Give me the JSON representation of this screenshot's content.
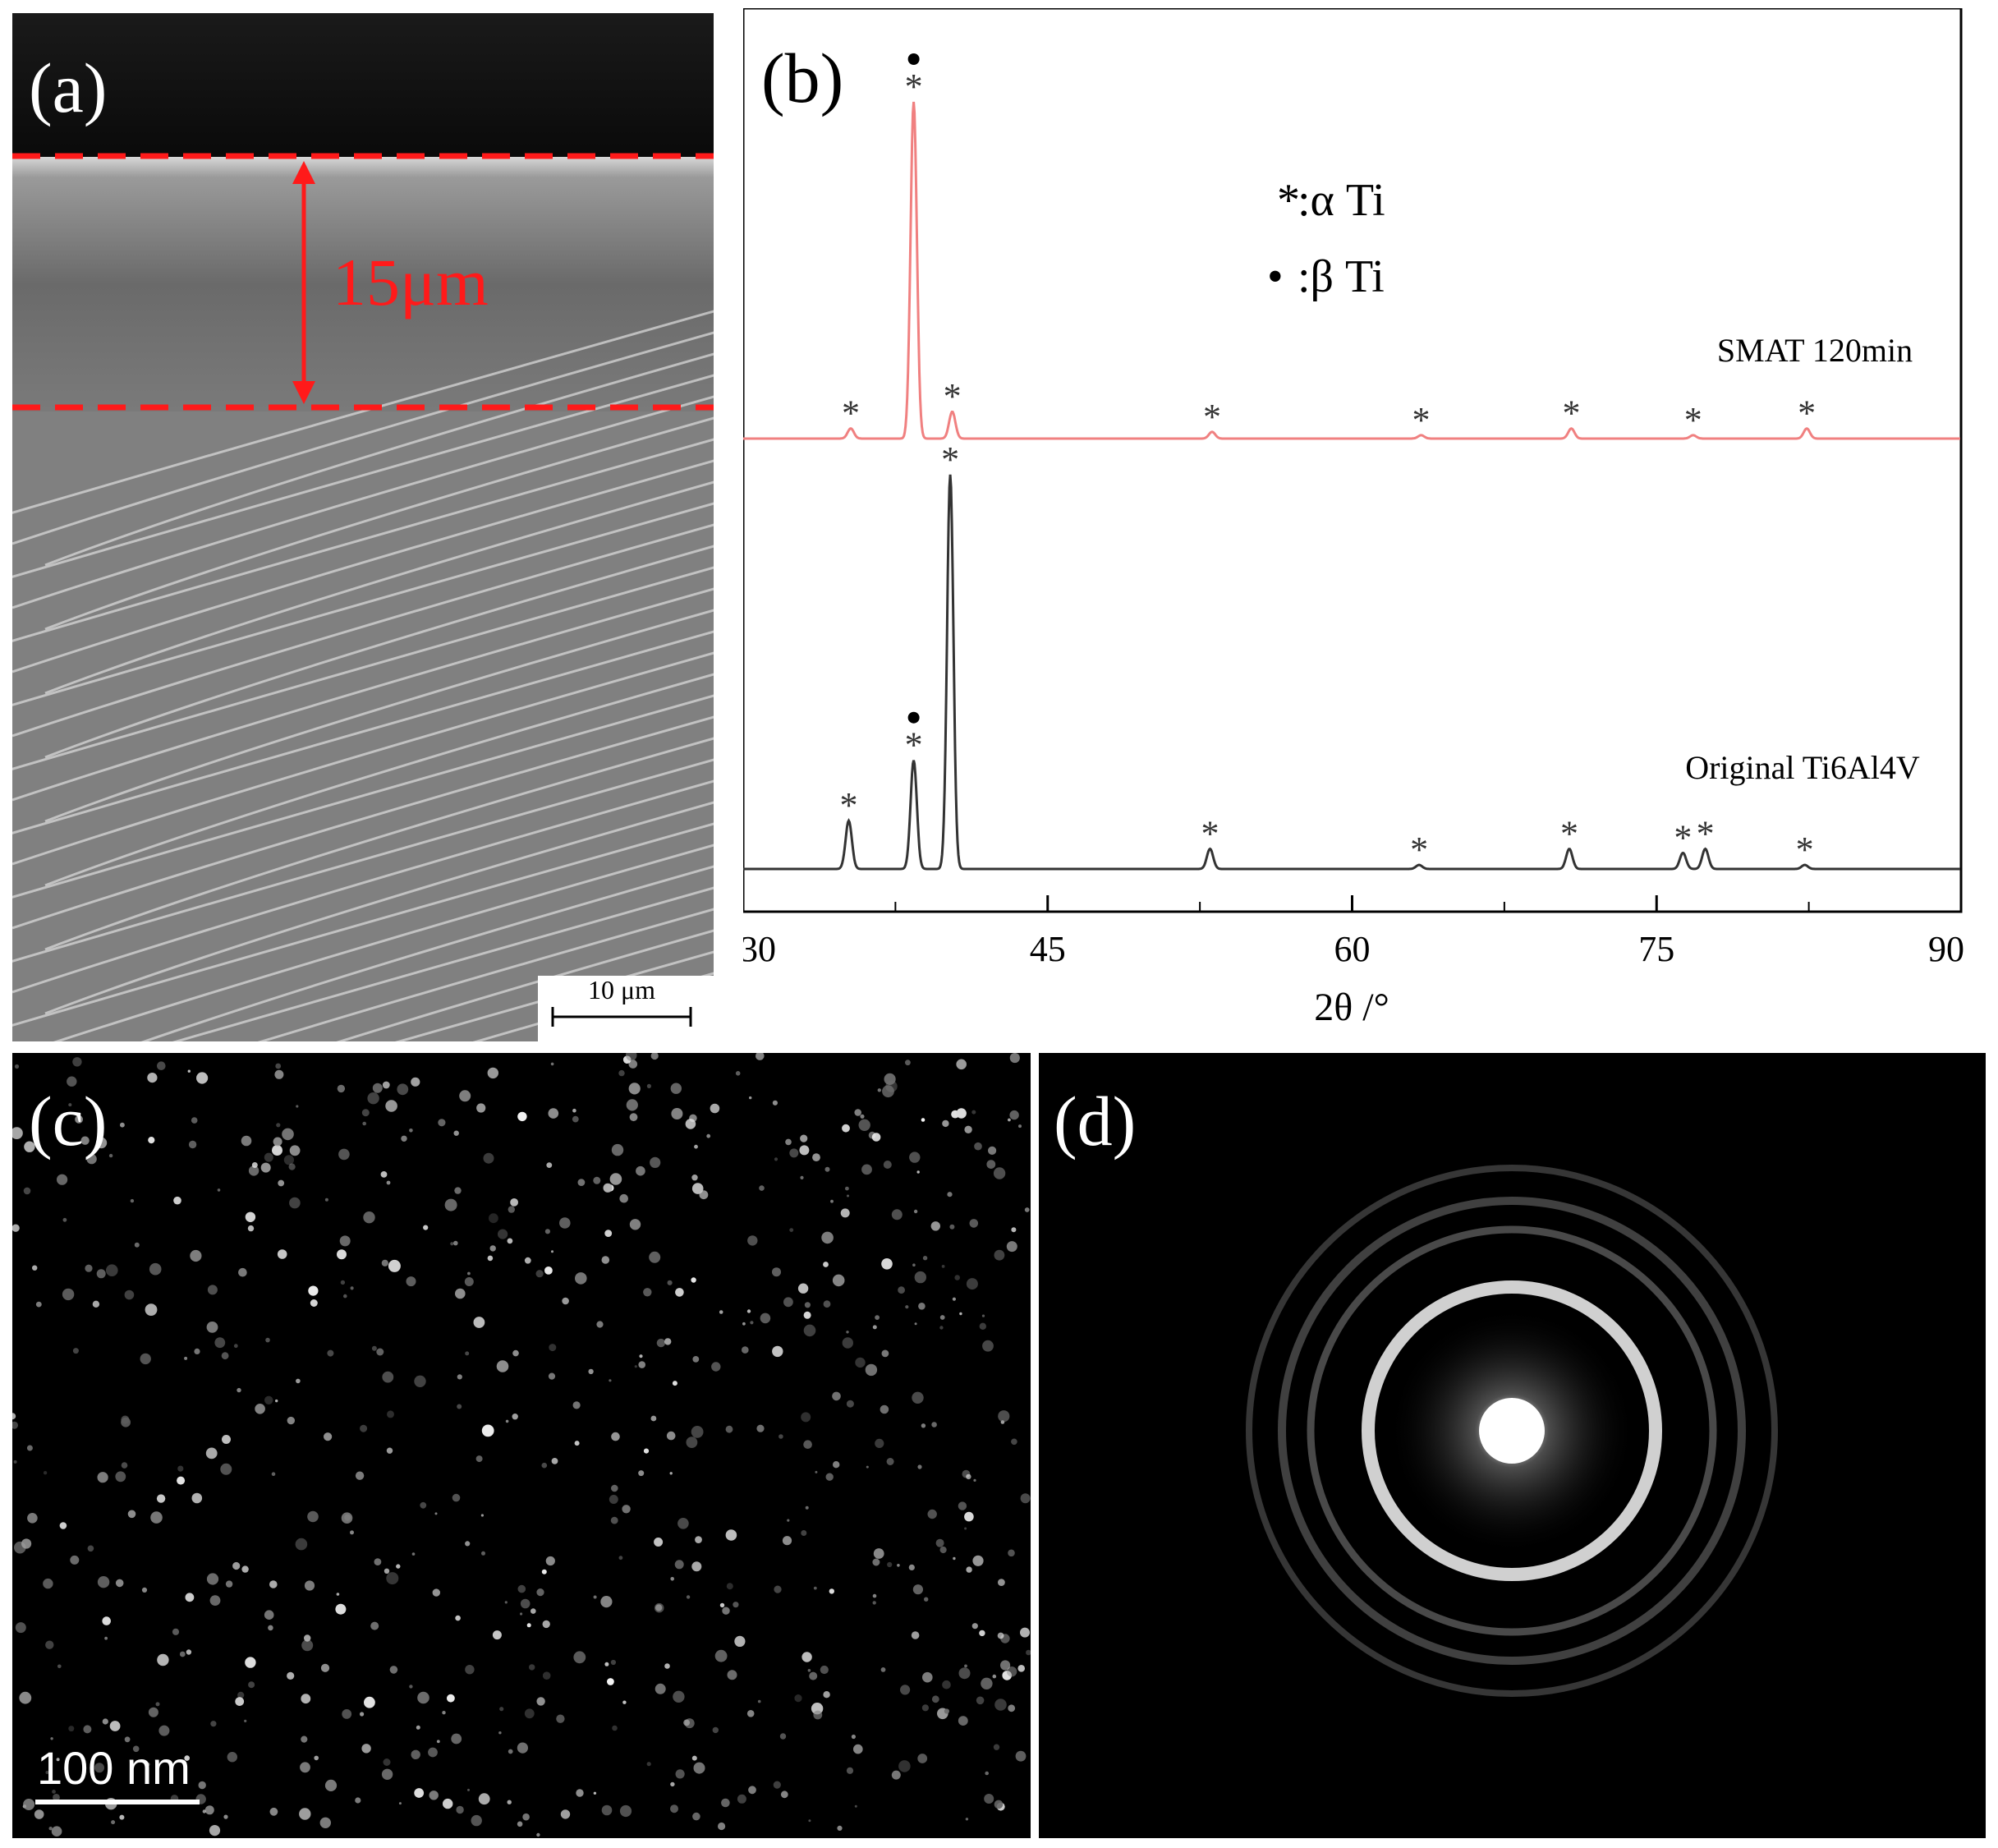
{
  "figure": {
    "panels": {
      "a": {
        "letter": "(a)",
        "thickness_label": "15μm",
        "scale_bar_label": "10 μm"
      },
      "b": {
        "letter": "(b)",
        "legend": [
          {
            "symbol": "*",
            "text": ":α Ti"
          },
          {
            "symbol": "•",
            "text": ":β Ti"
          }
        ]
      },
      "c": {
        "letter": "(c)",
        "scale_bar_label": "100 nm"
      },
      "d": {
        "letter": "(d)"
      }
    },
    "colors": {
      "thickness_marker": "#ff1a1a",
      "smat_curve": "#f08080",
      "original_curve": "#333333",
      "micrograph_bg": "#000000"
    }
  },
  "chart_data": {
    "type": "line",
    "xlabel": "2θ /°",
    "ylabel": "",
    "xlim": [
      30,
      90
    ],
    "xticks": [
      30,
      45,
      60,
      75,
      90
    ],
    "series": [
      {
        "name": "SMAT 120min",
        "color": "#f08080",
        "peaks": [
          {
            "x": 35.3,
            "h": 0.03,
            "marker": "*"
          },
          {
            "x": 38.4,
            "h": 1.0,
            "marker": "•*"
          },
          {
            "x": 40.3,
            "h": 0.08,
            "marker": "*"
          },
          {
            "x": 53.1,
            "h": 0.02,
            "marker": "*"
          },
          {
            "x": 63.4,
            "h": 0.01,
            "marker": "*"
          },
          {
            "x": 70.8,
            "h": 0.03,
            "marker": "*"
          },
          {
            "x": 76.8,
            "h": 0.01,
            "marker": "*"
          },
          {
            "x": 82.4,
            "h": 0.03,
            "marker": "*"
          }
        ]
      },
      {
        "name": "Original Ti6Al4V",
        "color": "#333333",
        "peaks": [
          {
            "x": 35.2,
            "h": 0.12,
            "marker": "*"
          },
          {
            "x": 38.4,
            "h": 0.27,
            "marker": "•*"
          },
          {
            "x": 40.2,
            "h": 0.98,
            "marker": "*"
          },
          {
            "x": 53.0,
            "h": 0.05,
            "marker": "*"
          },
          {
            "x": 63.3,
            "h": 0.01,
            "marker": "*"
          },
          {
            "x": 70.7,
            "h": 0.05,
            "marker": "*"
          },
          {
            "x": 76.3,
            "h": 0.04,
            "marker": "*"
          },
          {
            "x": 77.4,
            "h": 0.05,
            "marker": "*"
          },
          {
            "x": 82.3,
            "h": 0.01,
            "marker": "*"
          }
        ]
      }
    ],
    "grid": false
  }
}
